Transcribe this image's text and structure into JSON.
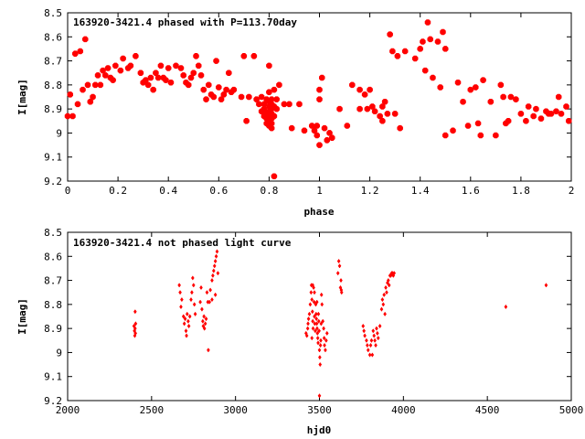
{
  "chart_data": [
    {
      "type": "scatter",
      "title": "163920-3421.4 phased with P=113.70day",
      "xlabel": "phase",
      "ylabel": "I[mag]",
      "xlim": [
        0,
        2
      ],
      "ylim": [
        8.5,
        9.2
      ],
      "y_inverted": true,
      "x_ticks": [
        "0",
        "0.2",
        "0.4",
        "0.6",
        "0.8",
        "1",
        "1.2",
        "1.4",
        "1.6",
        "1.8",
        "2"
      ],
      "y_ticks": [
        "8.5",
        "8.6",
        "8.7",
        "8.8",
        "8.9",
        "9",
        "9.1",
        "9.2"
      ],
      "marker_color": "#ff0000",
      "marker_shape": "star",
      "grid": false,
      "points": [
        [
          0.0,
          8.93
        ],
        [
          0.01,
          8.84
        ],
        [
          0.02,
          8.93
        ],
        [
          0.03,
          8.67
        ],
        [
          0.05,
          8.66
        ],
        [
          0.07,
          8.61
        ],
        [
          0.06,
          8.82
        ],
        [
          0.08,
          8.8
        ],
        [
          0.04,
          8.88
        ],
        [
          0.09,
          8.87
        ],
        [
          0.1,
          8.85
        ],
        [
          0.11,
          8.8
        ],
        [
          0.12,
          8.76
        ],
        [
          0.13,
          8.8
        ],
        [
          0.14,
          8.74
        ],
        [
          0.15,
          8.76
        ],
        [
          0.16,
          8.73
        ],
        [
          0.17,
          8.77
        ],
        [
          0.18,
          8.78
        ],
        [
          0.19,
          8.72
        ],
        [
          0.21,
          8.74
        ],
        [
          0.22,
          8.69
        ],
        [
          0.24,
          8.73
        ],
        [
          0.25,
          8.72
        ],
        [
          0.27,
          8.68
        ],
        [
          0.29,
          8.75
        ],
        [
          0.3,
          8.79
        ],
        [
          0.31,
          8.78
        ],
        [
          0.32,
          8.8
        ],
        [
          0.33,
          8.77
        ],
        [
          0.34,
          8.82
        ],
        [
          0.35,
          8.75
        ],
        [
          0.36,
          8.77
        ],
        [
          0.37,
          8.72
        ],
        [
          0.38,
          8.77
        ],
        [
          0.39,
          8.78
        ],
        [
          0.4,
          8.73
        ],
        [
          0.41,
          8.79
        ],
        [
          0.43,
          8.72
        ],
        [
          0.45,
          8.73
        ],
        [
          0.46,
          8.76
        ],
        [
          0.47,
          8.79
        ],
        [
          0.48,
          8.8
        ],
        [
          0.49,
          8.77
        ],
        [
          0.5,
          8.75
        ],
        [
          0.51,
          8.68
        ],
        [
          0.52,
          8.72
        ],
        [
          0.53,
          8.76
        ],
        [
          0.54,
          8.82
        ],
        [
          0.55,
          8.86
        ],
        [
          0.56,
          8.8
        ],
        [
          0.57,
          8.84
        ],
        [
          0.58,
          8.85
        ],
        [
          0.59,
          8.7
        ],
        [
          0.6,
          8.81
        ],
        [
          0.61,
          8.86
        ],
        [
          0.62,
          8.84
        ],
        [
          0.63,
          8.82
        ],
        [
          0.64,
          8.75
        ],
        [
          0.65,
          8.83
        ],
        [
          0.66,
          8.82
        ],
        [
          0.69,
          8.85
        ],
        [
          0.7,
          8.68
        ],
        [
          0.71,
          8.95
        ],
        [
          0.72,
          8.85
        ],
        [
          0.74,
          8.68
        ],
        [
          0.75,
          8.86
        ],
        [
          0.76,
          8.88
        ],
        [
          0.77,
          8.85
        ],
        [
          0.78,
          8.88
        ],
        [
          0.78,
          8.9
        ],
        [
          0.79,
          8.86
        ],
        [
          0.79,
          8.92
        ],
        [
          0.79,
          8.94
        ],
        [
          0.8,
          8.83
        ],
        [
          0.8,
          8.87
        ],
        [
          0.8,
          8.89
        ],
        [
          0.8,
          8.91
        ],
        [
          0.8,
          8.93
        ],
        [
          0.8,
          8.95
        ],
        [
          0.8,
          8.97
        ],
        [
          0.81,
          8.86
        ],
        [
          0.81,
          8.88
        ],
        [
          0.81,
          8.9
        ],
        [
          0.81,
          8.92
        ],
        [
          0.81,
          8.94
        ],
        [
          0.81,
          8.96
        ],
        [
          0.81,
          8.98
        ],
        [
          0.82,
          8.82
        ],
        [
          0.82,
          8.89
        ],
        [
          0.82,
          8.93
        ],
        [
          0.78,
          8.93
        ],
        [
          0.77,
          8.91
        ],
        [
          0.83,
          8.9
        ],
        [
          0.83,
          8.86
        ],
        [
          0.84,
          8.8
        ],
        [
          0.82,
          9.18
        ],
        [
          0.79,
          8.96
        ],
        [
          0.8,
          8.72
        ],
        [
          0.86,
          8.88
        ],
        [
          0.88,
          8.88
        ],
        [
          0.89,
          8.98
        ],
        [
          0.92,
          8.88
        ],
        [
          0.94,
          8.99
        ],
        [
          0.97,
          8.97
        ],
        [
          0.98,
          8.99
        ],
        [
          0.99,
          8.97
        ],
        [
          0.99,
          9.01
        ],
        [
          1.0,
          9.05
        ],
        [
          1.0,
          8.86
        ],
        [
          1.0,
          8.82
        ],
        [
          1.01,
          8.77
        ],
        [
          1.02,
          8.98
        ],
        [
          1.03,
          9.03
        ],
        [
          1.04,
          9.0
        ],
        [
          1.05,
          9.02
        ],
        [
          1.08,
          8.9
        ],
        [
          1.11,
          8.97
        ],
        [
          1.13,
          8.8
        ],
        [
          1.16,
          8.9
        ],
        [
          1.16,
          8.82
        ],
        [
          1.18,
          8.84
        ],
        [
          1.19,
          8.9
        ],
        [
          1.2,
          8.82
        ],
        [
          1.21,
          8.89
        ],
        [
          1.22,
          8.91
        ],
        [
          1.24,
          8.93
        ],
        [
          1.25,
          8.95
        ],
        [
          1.25,
          8.89
        ],
        [
          1.26,
          8.87
        ],
        [
          1.27,
          8.92
        ],
        [
          1.28,
          8.59
        ],
        [
          1.29,
          8.66
        ],
        [
          1.3,
          8.92
        ],
        [
          1.31,
          8.68
        ],
        [
          1.32,
          8.98
        ],
        [
          1.34,
          8.66
        ],
        [
          1.38,
          8.69
        ],
        [
          1.4,
          8.65
        ],
        [
          1.41,
          8.62
        ],
        [
          1.42,
          8.74
        ],
        [
          1.43,
          8.54
        ],
        [
          1.44,
          8.61
        ],
        [
          1.45,
          8.77
        ],
        [
          1.47,
          8.62
        ],
        [
          1.48,
          8.81
        ],
        [
          1.49,
          8.58
        ],
        [
          1.5,
          8.65
        ],
        [
          1.5,
          9.01
        ],
        [
          1.53,
          8.99
        ],
        [
          1.55,
          8.79
        ],
        [
          1.57,
          8.87
        ],
        [
          1.59,
          8.97
        ],
        [
          1.6,
          8.82
        ],
        [
          1.62,
          8.81
        ],
        [
          1.63,
          8.96
        ],
        [
          1.64,
          9.01
        ],
        [
          1.65,
          8.78
        ],
        [
          1.68,
          8.87
        ],
        [
          1.7,
          9.01
        ],
        [
          1.72,
          8.8
        ],
        [
          1.73,
          8.85
        ],
        [
          1.74,
          8.96
        ],
        [
          1.75,
          8.95
        ],
        [
          1.76,
          8.85
        ],
        [
          1.78,
          8.86
        ],
        [
          1.8,
          8.92
        ],
        [
          1.82,
          8.95
        ],
        [
          1.83,
          8.89
        ],
        [
          1.85,
          8.93
        ],
        [
          1.86,
          8.9
        ],
        [
          1.88,
          8.94
        ],
        [
          1.9,
          8.91
        ],
        [
          1.91,
          8.92
        ],
        [
          1.92,
          8.92
        ],
        [
          1.94,
          8.91
        ],
        [
          1.95,
          8.85
        ],
        [
          1.96,
          8.92
        ],
        [
          1.98,
          8.89
        ],
        [
          1.99,
          8.95
        ]
      ]
    },
    {
      "type": "scatter",
      "title": "163920-3421.4 not phased light curve",
      "xlabel": "hjd0",
      "ylabel": "I[mag]",
      "xlim": [
        2000,
        5000
      ],
      "ylim": [
        8.5,
        9.2
      ],
      "y_inverted": true,
      "x_ticks": [
        "2000",
        "2500",
        "3000",
        "3500",
        "4000",
        "4500",
        "5000"
      ],
      "y_ticks": [
        "8.5",
        "8.6",
        "8.7",
        "8.8",
        "8.9",
        "9",
        "9.1",
        "9.2"
      ],
      "marker_color": "#ff0000",
      "marker_shape": "diamond",
      "grid": false,
      "points": [
        [
          2395,
          8.89
        ],
        [
          2398,
          8.91
        ],
        [
          2400,
          8.93
        ],
        [
          2402,
          8.9
        ],
        [
          2405,
          8.88
        ],
        [
          2402,
          8.83
        ],
        [
          2404,
          8.92
        ],
        [
          2665,
          8.72
        ],
        [
          2670,
          8.75
        ],
        [
          2675,
          8.81
        ],
        [
          2680,
          8.78
        ],
        [
          2690,
          8.85
        ],
        [
          2695,
          8.88
        ],
        [
          2700,
          8.86
        ],
        [
          2705,
          8.91
        ],
        [
          2708,
          8.93
        ],
        [
          2712,
          8.84
        ],
        [
          2718,
          8.87
        ],
        [
          2722,
          8.89
        ],
        [
          2728,
          8.85
        ],
        [
          2735,
          8.78
        ],
        [
          2740,
          8.75
        ],
        [
          2745,
          8.69
        ],
        [
          2750,
          8.72
        ],
        [
          2755,
          8.8
        ],
        [
          2760,
          8.84
        ],
        [
          2790,
          8.79
        ],
        [
          2795,
          8.73
        ],
        [
          2800,
          8.82
        ],
        [
          2805,
          8.87
        ],
        [
          2808,
          8.89
        ],
        [
          2812,
          8.85
        ],
        [
          2815,
          8.9
        ],
        [
          2820,
          8.88
        ],
        [
          2825,
          8.86
        ],
        [
          2830,
          8.75
        ],
        [
          2835,
          8.79
        ],
        [
          2838,
          8.99
        ],
        [
          2845,
          8.79
        ],
        [
          2850,
          8.74
        ],
        [
          2860,
          8.7
        ],
        [
          2865,
          8.68
        ],
        [
          2870,
          8.66
        ],
        [
          2875,
          8.64
        ],
        [
          2880,
          8.62
        ],
        [
          2885,
          8.6
        ],
        [
          2890,
          8.58
        ],
        [
          2895,
          8.67
        ],
        [
          2880,
          8.76
        ],
        [
          2860,
          8.78
        ],
        [
          3420,
          8.92
        ],
        [
          3425,
          8.93
        ],
        [
          3430,
          8.9
        ],
        [
          3432,
          8.88
        ],
        [
          3435,
          8.86
        ],
        [
          3440,
          8.84
        ],
        [
          3445,
          8.8
        ],
        [
          3450,
          8.75
        ],
        [
          3452,
          8.72
        ],
        [
          3455,
          8.78
        ],
        [
          3458,
          8.83
        ],
        [
          3460,
          8.87
        ],
        [
          3462,
          8.9
        ],
        [
          3465,
          8.73
        ],
        [
          3468,
          8.79
        ],
        [
          3470,
          8.85
        ],
        [
          3472,
          8.88
        ],
        [
          3475,
          8.91
        ],
        [
          3478,
          8.8
        ],
        [
          3480,
          8.84
        ],
        [
          3482,
          8.86
        ],
        [
          3484,
          8.88
        ],
        [
          3486,
          8.9
        ],
        [
          3488,
          8.92
        ],
        [
          3490,
          8.94
        ],
        [
          3492,
          8.96
        ],
        [
          3494,
          8.84
        ],
        [
          3496,
          8.87
        ],
        [
          3498,
          8.91
        ],
        [
          3500,
          8.99
        ],
        [
          3502,
          9.02
        ],
        [
          3504,
          9.05
        ],
        [
          3506,
          8.97
        ],
        [
          3508,
          8.95
        ],
        [
          3510,
          8.88
        ],
        [
          3512,
          8.76
        ],
        [
          3515,
          8.8
        ],
        [
          3520,
          8.87
        ],
        [
          3525,
          8.9
        ],
        [
          3528,
          8.94
        ],
        [
          3530,
          8.97
        ],
        [
          3535,
          8.99
        ],
        [
          3540,
          8.95
        ],
        [
          3545,
          8.92
        ],
        [
          3500,
          9.18
        ],
        [
          3470,
          8.75
        ],
        [
          3485,
          8.79
        ],
        [
          3460,
          8.72
        ],
        [
          3455,
          8.94
        ],
        [
          3610,
          8.67
        ],
        [
          3615,
          8.62
        ],
        [
          3620,
          8.64
        ],
        [
          3625,
          8.73
        ],
        [
          3630,
          8.74
        ],
        [
          3632,
          8.75
        ],
        [
          3628,
          8.7
        ],
        [
          3760,
          8.89
        ],
        [
          3765,
          8.91
        ],
        [
          3770,
          8.93
        ],
        [
          3780,
          8.95
        ],
        [
          3785,
          8.97
        ],
        [
          3790,
          8.99
        ],
        [
          3800,
          9.01
        ],
        [
          3805,
          8.97
        ],
        [
          3810,
          8.95
        ],
        [
          3815,
          9.01
        ],
        [
          3820,
          8.91
        ],
        [
          3825,
          8.93
        ],
        [
          3830,
          8.95
        ],
        [
          3835,
          8.97
        ],
        [
          3840,
          8.9
        ],
        [
          3845,
          8.92
        ],
        [
          3850,
          8.94
        ],
        [
          3860,
          8.89
        ],
        [
          3870,
          8.82
        ],
        [
          3875,
          8.78
        ],
        [
          3880,
          8.8
        ],
        [
          3885,
          8.76
        ],
        [
          3890,
          8.84
        ],
        [
          3895,
          8.73
        ],
        [
          3900,
          8.75
        ],
        [
          3905,
          8.71
        ],
        [
          3910,
          8.7
        ],
        [
          3915,
          8.72
        ],
        [
          3920,
          8.68
        ],
        [
          3925,
          8.68
        ],
        [
          3930,
          8.67
        ],
        [
          3935,
          8.67
        ],
        [
          3940,
          8.68
        ],
        [
          3945,
          8.67
        ],
        [
          4610,
          8.81
        ],
        [
          4850,
          8.72
        ]
      ]
    }
  ]
}
